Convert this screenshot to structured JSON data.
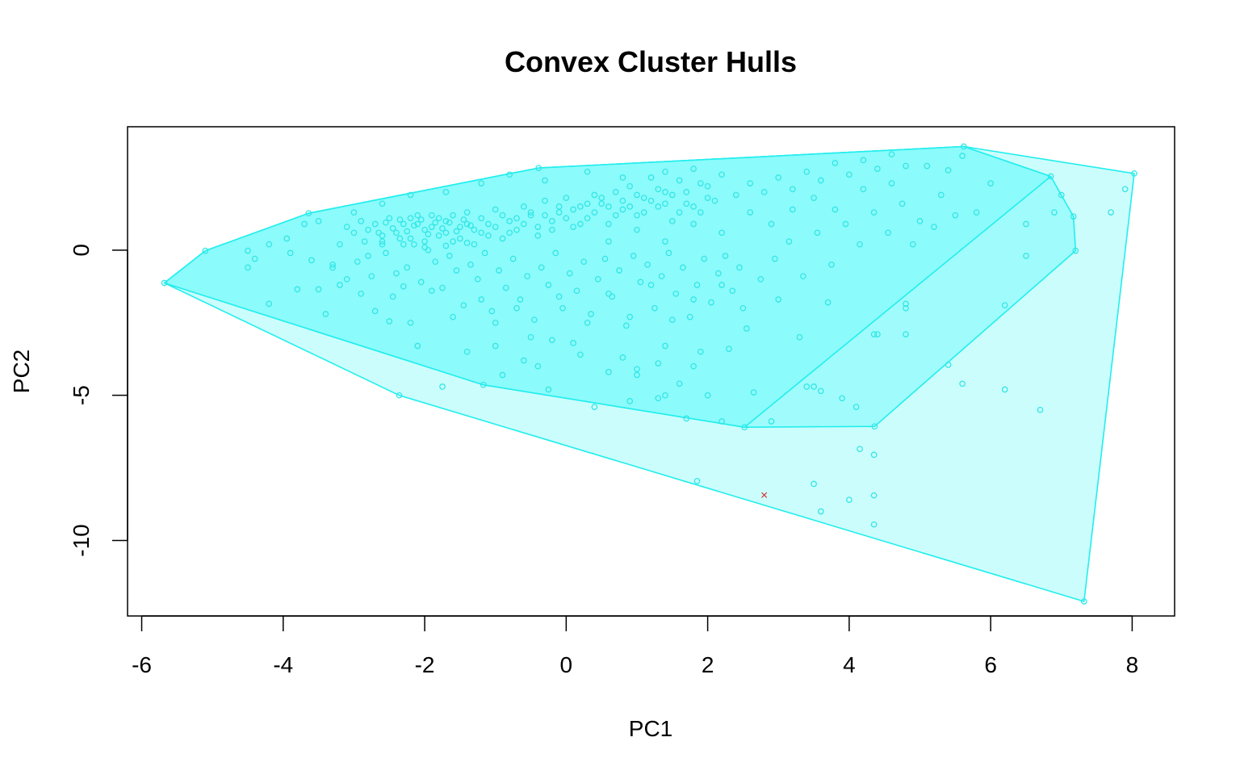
{
  "chart_data": {
    "type": "scatter",
    "title": "Convex Cluster Hulls",
    "xlabel": "PC1",
    "ylabel": "PC2",
    "xlim": [
      -6.2,
      8.6
    ],
    "ylim": [
      -12.6,
      4.25
    ],
    "xticks": [
      -6,
      -4,
      -2,
      0,
      2,
      4,
      6,
      8
    ],
    "yticks": [
      0,
      -5,
      -10
    ],
    "grid": false,
    "legend": "none",
    "colors": {
      "hull_outline": "#22eeee",
      "outer_fill": "#ccfdfd",
      "middle_fill": "#a0fcfc",
      "inner_fill": "#8cfbfb",
      "points": "#33e6e6",
      "marker": "#d62728"
    },
    "hulls": [
      {
        "vertices": [
          [
            -5.68,
            -1.13
          ],
          [
            -5.1,
            -0.02
          ],
          [
            -3.64,
            1.27
          ],
          [
            -0.39,
            2.83
          ],
          [
            5.62,
            3.57
          ],
          [
            8.03,
            2.64
          ],
          [
            7.32,
            -12.1
          ],
          [
            -2.36,
            -5.0
          ]
        ]
      },
      {
        "vertices": [
          [
            -5.68,
            -1.13
          ],
          [
            -5.1,
            -0.02
          ],
          [
            -3.64,
            1.27
          ],
          [
            -0.39,
            2.83
          ],
          [
            5.62,
            3.57
          ],
          [
            6.85,
            2.54
          ],
          [
            7.17,
            1.16
          ],
          [
            7.2,
            -0.02
          ],
          [
            4.36,
            -6.07
          ],
          [
            2.52,
            -6.1
          ],
          [
            -1.17,
            -4.64
          ]
        ]
      },
      {
        "vertices": [
          [
            -5.68,
            -1.13
          ],
          [
            -5.1,
            -0.02
          ],
          [
            -3.64,
            1.27
          ],
          [
            -0.39,
            2.83
          ],
          [
            5.62,
            3.57
          ],
          [
            6.85,
            2.54
          ],
          [
            2.52,
            -6.1
          ],
          [
            -1.17,
            -4.64
          ]
        ]
      }
    ],
    "points": [
      [
        -5.68,
        -1.13
      ],
      [
        -5.1,
        -0.02
      ],
      [
        -3.64,
        1.27
      ],
      [
        -0.39,
        2.83
      ],
      [
        5.62,
        3.57
      ],
      [
        8.03,
        2.64
      ],
      [
        7.32,
        -12.1
      ],
      [
        -2.36,
        -5.0
      ],
      [
        6.85,
        2.54
      ],
      [
        7.17,
        1.16
      ],
      [
        7.2,
        -0.02
      ],
      [
        4.36,
        -6.07
      ],
      [
        2.52,
        -6.1
      ],
      [
        -1.17,
        -4.64
      ],
      [
        -4.5,
        -0.02
      ],
      [
        -4.5,
        -0.6
      ],
      [
        -4.4,
        -0.3
      ],
      [
        -4.2,
        -1.85
      ],
      [
        -3.95,
        0.4
      ],
      [
        -3.9,
        -0.1
      ],
      [
        -3.8,
        -1.35
      ],
      [
        -3.7,
        0.9
      ],
      [
        -3.6,
        -0.35
      ],
      [
        -3.5,
        -1.35
      ],
      [
        -3.4,
        -2.2
      ],
      [
        -3.3,
        -0.6
      ],
      [
        -3.2,
        0.2
      ],
      [
        -3.1,
        -1.0
      ],
      [
        -3.0,
        0.6
      ],
      [
        -2.9,
        -1.5
      ],
      [
        -2.8,
        -0.2
      ],
      [
        -2.7,
        -2.1
      ],
      [
        -2.6,
        0.2
      ],
      [
        -2.5,
        -2.45
      ],
      [
        -2.4,
        -0.8
      ],
      [
        -2.3,
        -1.25
      ],
      [
        -2.2,
        1.1
      ],
      [
        -2.1,
        0.9
      ],
      [
        -2.0,
        0.7
      ],
      [
        -1.9,
        1.2
      ],
      [
        -1.8,
        0.5
      ],
      [
        -1.7,
        1.0
      ],
      [
        -1.6,
        0.3
      ],
      [
        -1.5,
        0.8
      ],
      [
        -1.4,
        1.3
      ],
      [
        -1.3,
        0.2
      ],
      [
        -1.2,
        0.6
      ],
      [
        -1.1,
        0.9
      ],
      [
        -1.0,
        1.4
      ],
      [
        -0.9,
        0.4
      ],
      [
        -0.8,
        1.0
      ],
      [
        -0.7,
        0.7
      ],
      [
        -0.6,
        1.5
      ],
      [
        -0.5,
        1.2
      ],
      [
        -0.4,
        0.5
      ],
      [
        -0.3,
        1.7
      ],
      [
        -0.2,
        1.0
      ],
      [
        -0.1,
        1.3
      ],
      [
        0.0,
        1.8
      ],
      [
        0.1,
        0.8
      ],
      [
        0.2,
        1.5
      ],
      [
        0.3,
        1.1
      ],
      [
        0.4,
        1.9
      ],
      [
        0.5,
        1.6
      ],
      [
        0.6,
        0.9
      ],
      [
        0.7,
        2.0
      ],
      [
        0.8,
        1.4
      ],
      [
        0.9,
        2.2
      ],
      [
        1.0,
        1.2
      ],
      [
        1.1,
        1.8
      ],
      [
        1.2,
        2.5
      ],
      [
        1.3,
        1.5
      ],
      [
        1.4,
        2.0
      ],
      [
        1.5,
        1.0
      ],
      [
        1.6,
        2.4
      ],
      [
        1.7,
        1.6
      ],
      [
        1.8,
        2.8
      ],
      [
        1.9,
        1.3
      ],
      [
        2.0,
        2.2
      ],
      [
        2.1,
        1.7
      ],
      [
        2.2,
        2.6
      ],
      [
        2.4,
        1.9
      ],
      [
        2.6,
        2.3
      ],
      [
        2.8,
        2.0
      ],
      [
        3.0,
        2.5
      ],
      [
        3.2,
        2.1
      ],
      [
        3.4,
        2.7
      ],
      [
        3.6,
        2.4
      ],
      [
        3.8,
        3.0
      ],
      [
        4.0,
        2.6
      ],
      [
        4.2,
        3.1
      ],
      [
        4.4,
        2.8
      ],
      [
        4.6,
        3.3
      ],
      [
        4.8,
        2.9
      ],
      [
        5.1,
        2.9
      ],
      [
        5.4,
        2.75
      ],
      [
        5.6,
        3.25
      ],
      [
        -2.2,
        -2.5
      ],
      [
        -2.1,
        -3.3
      ],
      [
        -1.9,
        -1.4
      ],
      [
        -1.75,
        -4.7
      ],
      [
        -1.6,
        -2.3
      ],
      [
        -1.4,
        -3.5
      ],
      [
        -1.2,
        -1.7
      ],
      [
        -1.0,
        -2.5
      ],
      [
        -0.9,
        -4.3
      ],
      [
        -0.7,
        -2.0
      ],
      [
        -0.5,
        -3.0
      ],
      [
        -0.4,
        -4.0
      ],
      [
        -0.25,
        -4.8
      ],
      [
        -0.1,
        -1.6
      ],
      [
        0.1,
        -3.2
      ],
      [
        0.3,
        -2.5
      ],
      [
        0.4,
        -5.4
      ],
      [
        0.6,
        -1.5
      ],
      [
        0.8,
        -3.7
      ],
      [
        0.9,
        -2.3
      ],
      [
        1.0,
        -4.3
      ],
      [
        1.2,
        -1.2
      ],
      [
        1.3,
        -3.9
      ],
      [
        1.5,
        -2.4
      ],
      [
        1.6,
        -4.6
      ],
      [
        1.8,
        -1.7
      ],
      [
        1.9,
        -3.5
      ],
      [
        2.0,
        -5.0
      ],
      [
        2.2,
        -1.2
      ],
      [
        2.3,
        -3.4
      ],
      [
        2.5,
        -2.0
      ],
      [
        2.65,
        -4.9
      ],
      [
        2.9,
        -5.9
      ],
      [
        3.0,
        -1.7
      ],
      [
        3.3,
        -3.0
      ],
      [
        3.5,
        -4.7
      ],
      [
        3.7,
        -1.8
      ],
      [
        3.9,
        -5.1
      ],
      [
        4.1,
        -5.4
      ],
      [
        4.4,
        -2.9
      ],
      [
        4.8,
        -2.0
      ],
      [
        4.9,
        0.2
      ],
      [
        5.2,
        0.8
      ],
      [
        5.6,
        -4.6
      ],
      [
        5.8,
        1.3
      ],
      [
        6.0,
        2.3
      ],
      [
        6.2,
        -1.9
      ],
      [
        6.5,
        -0.2
      ],
      [
        6.5,
        0.9
      ],
      [
        6.9,
        1.3
      ],
      [
        7.0,
        1.9
      ],
      [
        7.7,
        1.3
      ],
      [
        7.9,
        2.1
      ],
      [
        6.2,
        -4.8
      ],
      [
        6.7,
        -5.5
      ],
      [
        -4.2,
        0.2
      ],
      [
        -3.5,
        1.0
      ],
      [
        -3.0,
        1.3
      ],
      [
        -2.6,
        1.6
      ],
      [
        -2.2,
        1.9
      ],
      [
        -1.7,
        2.0
      ],
      [
        -1.2,
        2.3
      ],
      [
        -0.8,
        2.6
      ],
      [
        -0.3,
        2.4
      ],
      [
        0.3,
        2.7
      ],
      [
        0.8,
        2.5
      ],
      [
        1.4,
        2.7
      ],
      [
        -3.3,
        -0.5
      ],
      [
        -3.2,
        -1.2
      ],
      [
        -3.1,
        0.8
      ],
      [
        -2.95,
        -0.4
      ],
      [
        -2.85,
        0.3
      ],
      [
        -2.75,
        -0.9
      ],
      [
        -2.65,
        0.6
      ],
      [
        -2.55,
        -0.1
      ],
      [
        -2.45,
        -1.6
      ],
      [
        -2.35,
        0.4
      ],
      [
        -2.25,
        -0.6
      ],
      [
        -2.15,
        0.2
      ],
      [
        -2.05,
        -1.1
      ],
      [
        -1.95,
        0.0
      ],
      [
        -1.85,
        -0.4
      ],
      [
        -1.75,
        -1.3
      ],
      [
        -1.65,
        -0.2
      ],
      [
        -1.55,
        -0.7
      ],
      [
        -1.45,
        -1.9
      ],
      [
        -1.35,
        -0.5
      ],
      [
        -1.25,
        -1.0
      ],
      [
        -1.15,
        -0.1
      ],
      [
        -1.05,
        -2.1
      ],
      [
        -0.95,
        -0.7
      ],
      [
        -0.85,
        -1.3
      ],
      [
        -0.75,
        -0.3
      ],
      [
        -0.65,
        -1.7
      ],
      [
        -0.55,
        -0.9
      ],
      [
        -0.45,
        -2.4
      ],
      [
        -0.35,
        -0.6
      ],
      [
        -0.25,
        -1.2
      ],
      [
        -0.15,
        -0.1
      ],
      [
        -0.05,
        -2.0
      ],
      [
        0.05,
        -0.8
      ],
      [
        0.15,
        -1.4
      ],
      [
        0.25,
        -0.4
      ],
      [
        0.35,
        -2.2
      ],
      [
        0.45,
        -1.0
      ],
      [
        0.55,
        -0.3
      ],
      [
        0.65,
        -1.6
      ],
      [
        0.75,
        -0.7
      ],
      [
        0.85,
        -2.6
      ],
      [
        0.95,
        -0.2
      ],
      [
        1.05,
        -1.1
      ],
      [
        1.15,
        -0.5
      ],
      [
        1.25,
        -2.0
      ],
      [
        1.35,
        -0.9
      ],
      [
        1.45,
        -0.1
      ],
      [
        1.55,
        -1.5
      ],
      [
        1.65,
        -0.6
      ],
      [
        1.75,
        -2.3
      ],
      [
        1.85,
        -1.2
      ],
      [
        1.95,
        -0.3
      ],
      [
        2.05,
        -1.8
      ],
      [
        2.15,
        -0.8
      ],
      [
        2.25,
        -0.2
      ],
      [
        2.35,
        -1.4
      ],
      [
        2.45,
        -0.6
      ],
      [
        2.55,
        -2.7
      ],
      [
        2.75,
        -1.0
      ],
      [
        2.95,
        -0.3
      ],
      [
        3.15,
        0.3
      ],
      [
        3.35,
        -0.9
      ],
      [
        3.55,
        0.6
      ],
      [
        3.75,
        -0.5
      ],
      [
        3.95,
        0.9
      ],
      [
        4.15,
        0.2
      ],
      [
        4.35,
        1.3
      ],
      [
        4.55,
        0.6
      ],
      [
        4.75,
        1.6
      ],
      [
        5.0,
        1.0
      ],
      [
        5.3,
        1.9
      ],
      [
        5.5,
        1.2
      ],
      [
        -2.9,
        1.0
      ],
      [
        -2.8,
        0.7
      ],
      [
        -2.7,
        0.9
      ],
      [
        -2.6,
        0.5
      ],
      [
        -2.5,
        1.1
      ],
      [
        -2.4,
        0.6
      ],
      [
        -2.3,
        0.9
      ],
      [
        -2.2,
        0.4
      ],
      [
        -2.1,
        1.2
      ],
      [
        -2.0,
        0.3
      ],
      [
        -1.9,
        0.8
      ],
      [
        -1.8,
        1.1
      ],
      [
        -1.7,
        0.6
      ],
      [
        -1.6,
        1.2
      ],
      [
        -1.5,
        0.4
      ],
      [
        -1.4,
        0.9
      ],
      [
        -1.3,
        0.7
      ],
      [
        -1.2,
        1.1
      ],
      [
        -1.1,
        0.5
      ],
      [
        -1.0,
        0.8
      ],
      [
        -0.9,
        1.2
      ],
      [
        -0.8,
        0.6
      ],
      [
        -0.7,
        1.1
      ],
      [
        -0.6,
        0.9
      ],
      [
        -0.5,
        1.3
      ],
      [
        -0.4,
        0.8
      ],
      [
        -0.3,
        1.2
      ],
      [
        -0.2,
        0.7
      ],
      [
        -0.1,
        1.5
      ],
      [
        0.0,
        1.1
      ],
      [
        0.1,
        1.4
      ],
      [
        0.2,
        0.9
      ],
      [
        0.3,
        1.6
      ],
      [
        0.4,
        1.3
      ],
      [
        0.5,
        1.8
      ],
      [
        0.6,
        1.5
      ],
      [
        0.7,
        1.2
      ],
      [
        0.8,
        1.7
      ],
      [
        0.9,
        1.5
      ],
      [
        1.0,
        1.9
      ],
      [
        1.1,
        1.3
      ],
      [
        1.2,
        1.7
      ],
      [
        1.3,
        2.1
      ],
      [
        1.4,
        1.6
      ],
      [
        1.5,
        1.9
      ],
      [
        1.6,
        1.3
      ],
      [
        1.7,
        2.0
      ],
      [
        1.8,
        1.5
      ],
      [
        1.9,
        2.3
      ],
      [
        2.0,
        1.8
      ],
      [
        -2.55,
        0.95
      ],
      [
        -2.45,
        0.75
      ],
      [
        -2.35,
        1.05
      ],
      [
        -2.25,
        0.65
      ],
      [
        -2.15,
        0.85
      ],
      [
        -2.05,
        1.05
      ],
      [
        -1.95,
        0.55
      ],
      [
        -1.85,
        0.95
      ],
      [
        -1.75,
        0.75
      ],
      [
        -1.65,
        0.95
      ],
      [
        -1.55,
        0.65
      ],
      [
        -1.45,
        1.05
      ],
      [
        -1.35,
        0.85
      ],
      [
        -2.6,
        0.3
      ],
      [
        -2.3,
        0.2
      ],
      [
        -2.0,
        0.1
      ],
      [
        -1.7,
        0.15
      ],
      [
        -1.4,
        0.25
      ],
      [
        0.6,
        0.3
      ],
      [
        1.0,
        0.7
      ],
      [
        1.4,
        0.3
      ],
      [
        1.8,
        0.9
      ],
      [
        2.2,
        0.6
      ],
      [
        2.6,
        1.3
      ],
      [
        2.9,
        0.9
      ],
      [
        3.2,
        1.4
      ],
      [
        3.5,
        1.8
      ],
      [
        3.8,
        1.4
      ],
      [
        4.2,
        2.1
      ],
      [
        4.6,
        2.3
      ],
      [
        -1.0,
        -3.3
      ],
      [
        -0.6,
        -3.8
      ],
      [
        -0.2,
        -3.1
      ],
      [
        0.2,
        -3.6
      ],
      [
        0.6,
        -4.2
      ],
      [
        1.0,
        -4.1
      ],
      [
        1.4,
        -3.3
      ],
      [
        1.8,
        -4.0
      ],
      [
        0.9,
        -5.2
      ],
      [
        1.4,
        -5.0
      ],
      [
        1.7,
        -5.8
      ],
      [
        2.2,
        -5.9
      ],
      [
        1.3,
        -5.1
      ],
      [
        4.8,
        -2.9
      ],
      [
        4.8,
        -1.85
      ],
      [
        5.4,
        -3.95
      ],
      [
        3.4,
        -4.7
      ],
      [
        3.6,
        -4.85
      ],
      [
        4.35,
        -2.9
      ],
      [
        1.85,
        -7.95
      ],
      [
        3.5,
        -8.05
      ],
      [
        3.6,
        -9.0
      ],
      [
        4.0,
        -8.6
      ],
      [
        4.35,
        -8.45
      ],
      [
        4.35,
        -9.45
      ],
      [
        4.15,
        -6.85
      ],
      [
        4.35,
        -7.05
      ]
    ],
    "marker": {
      "x": 2.8,
      "y": -8.45,
      "symbol": "×"
    }
  }
}
